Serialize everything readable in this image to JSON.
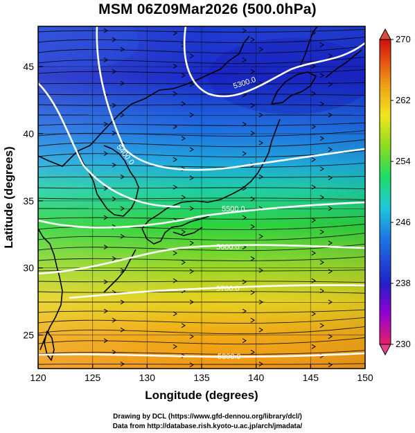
{
  "title": "MSM 06Z09Mar2026 (500.0hPa)",
  "credits": {
    "drawing": "Drawing by DCL (https://www.gfd-dennou.org/library/dcl/)",
    "data": "Data from http://database.rish.kyoto-u.ac.jp/arch/jmadata/"
  },
  "map": {
    "xlabel": "Longitude (degrees)",
    "ylabel": "Latitude  (degrees)",
    "xlim": [
      120,
      150
    ],
    "ylim": [
      22.5,
      48
    ],
    "xticks": [
      "120",
      "125",
      "130",
      "135",
      "140",
      "145",
      "150"
    ],
    "yticks": [
      "25",
      "30",
      "35",
      "40",
      "45"
    ],
    "shading": "temperature",
    "contours": [
      {
        "label": "5300.0",
        "value": 5300
      },
      {
        "label": "5400.0",
        "value": 5400
      },
      {
        "label": "5500.0",
        "value": 5500
      },
      {
        "label": "5600.0",
        "value": 5600
      },
      {
        "label": "5700.0",
        "value": 5700
      },
      {
        "label": "5800.0",
        "value": 5800
      }
    ]
  },
  "colorbar": {
    "min": 230,
    "max": 270,
    "labels": [
      "270",
      "262",
      "254",
      "246",
      "238",
      "230"
    ],
    "colors": [
      "#e8206a",
      "#9400d3",
      "#2020c8",
      "#1e78e6",
      "#1ec8dc",
      "#1edc64",
      "#8cdc1e",
      "#f0e61e",
      "#f0a014",
      "#e65010",
      "#d01010"
    ]
  }
}
